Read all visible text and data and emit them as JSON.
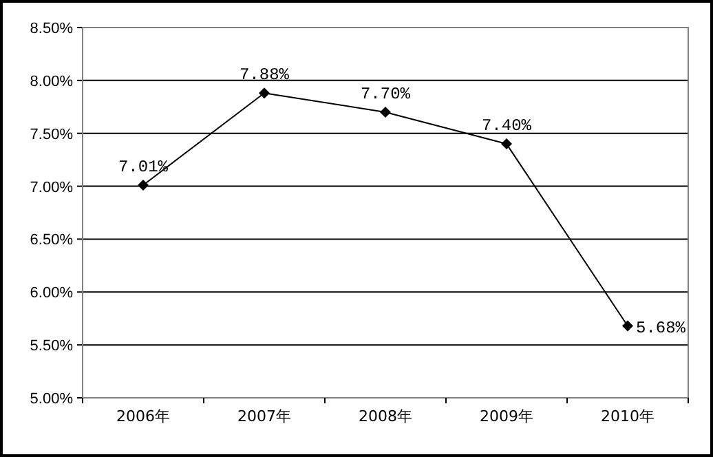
{
  "chart_data": {
    "type": "line",
    "categories": [
      "2006年",
      "2007年",
      "2008年",
      "2009年",
      "2010年"
    ],
    "series": [
      {
        "color": "#000000",
        "values": [
          7.01,
          7.88,
          7.7,
          7.4,
          5.68
        ],
        "value_labels": [
          "7.01%",
          "7.88%",
          "7.70%",
          "7.40%",
          "5.68%"
        ]
      }
    ],
    "ylim": [
      5.0,
      8.5
    ],
    "yticks": [
      {
        "value": 5.0,
        "label": "5.00%"
      },
      {
        "value": 5.5,
        "label": "5.50%"
      },
      {
        "value": 6.0,
        "label": "6.00%"
      },
      {
        "value": 6.5,
        "label": "6.50%"
      },
      {
        "value": 7.0,
        "label": "7.00%"
      },
      {
        "value": 7.5,
        "label": "7.50%"
      },
      {
        "value": 8.0,
        "label": "8.00%"
      },
      {
        "value": 8.5,
        "label": "8.50%"
      }
    ],
    "grid": "y",
    "marker": "diamond",
    "line_style": "solid"
  }
}
